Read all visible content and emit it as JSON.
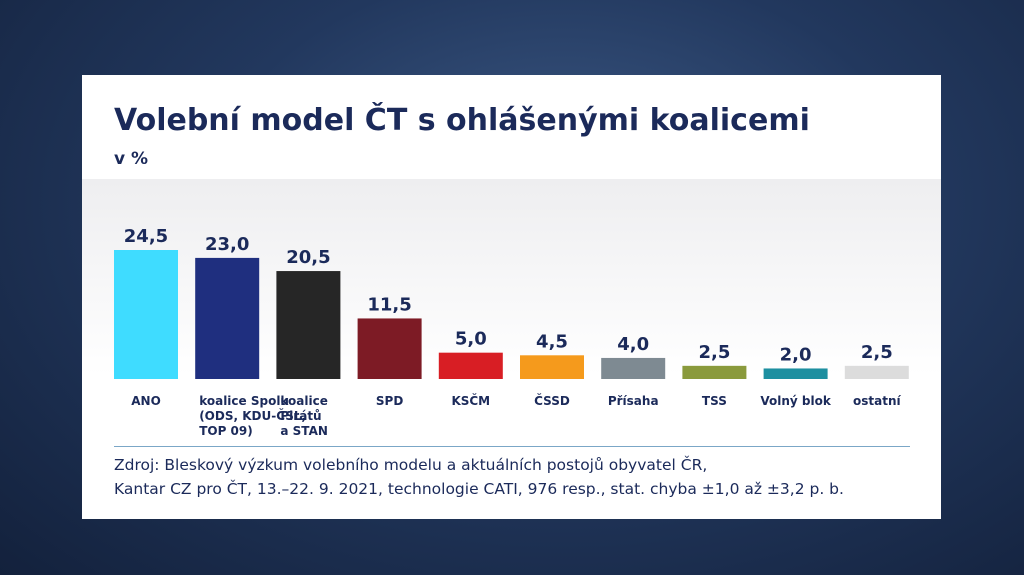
{
  "chart_data": {
    "type": "bar",
    "title": "Volební model ČT s ohlášenými koalicemi",
    "subtitle": "v %",
    "categories": [
      [
        "ANO"
      ],
      [
        "koalice Spolu",
        "(ODS, KDU-ČSL,",
        "TOP 09)"
      ],
      [
        "koalice",
        "Pirátů",
        "a STAN"
      ],
      [
        "SPD"
      ],
      [
        "KSČM"
      ],
      [
        "ČSSD"
      ],
      [
        "Přísaha"
      ],
      [
        "TSS"
      ],
      [
        "Volný blok"
      ],
      [
        "ostatní"
      ]
    ],
    "values": [
      24.5,
      23.0,
      20.5,
      11.5,
      5.0,
      4.5,
      4.0,
      2.5,
      2.0,
      2.5
    ],
    "value_labels": [
      "24,5",
      "23,0",
      "20,5",
      "11,5",
      "5,0",
      "4,5",
      "4,0",
      "2,5",
      "2,0",
      "2,5"
    ],
    "colors": [
      "#3fdcff",
      "#1f2f7f",
      "#262626",
      "#7d1b25",
      "#d81e24",
      "#f59a1c",
      "#7e8a92",
      "#8a9a3c",
      "#1d8fa0",
      "#dcdcdc"
    ],
    "ylim": [
      0,
      24.5
    ],
    "grid": false,
    "legend": "none"
  },
  "source": {
    "line1": "Zdroj: Bleskový výzkum volebního modelu a aktuálních postojů obyvatel ČR,",
    "line2": "Kantar CZ pro ČT, 13.–22. 9. 2021, technologie CATI, 976 resp., stat. chyba ±1,0 až ±3,2 p. b."
  }
}
